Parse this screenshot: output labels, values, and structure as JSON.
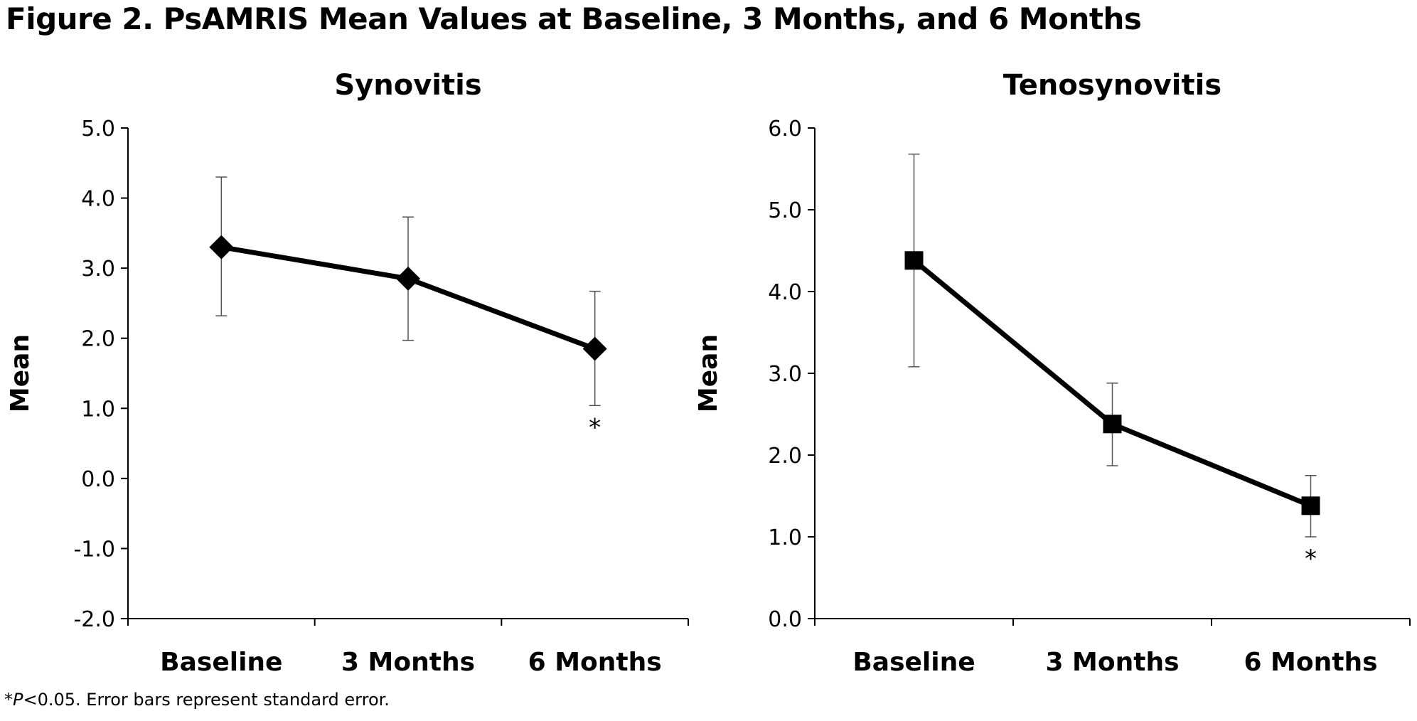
{
  "figure": {
    "title": "Figure 2. PsAMRIS Mean Values at Baseline, 3 Months, and 6 Months",
    "footnote_star": "*",
    "footnote_p": "P",
    "footnote_rest": "<0.05. Error bars represent standard error."
  },
  "chart_data": [
    {
      "type": "line",
      "title": "Synovitis",
      "xlabel": "",
      "ylabel": "Mean",
      "categories": [
        "Baseline",
        "3 Months",
        "6 Months"
      ],
      "series": [
        {
          "values": [
            3.3,
            2.85,
            1.85
          ],
          "error_upper": [
            4.3,
            3.73,
            2.67
          ],
          "error_lower": [
            2.32,
            1.97,
            1.04
          ],
          "marker": "diamond",
          "color": "#000000"
        }
      ],
      "ylim": [
        -2.0,
        5.0
      ],
      "yticks": [
        "-2.0",
        "-1.0",
        "0.0",
        "1.0",
        "2.0",
        "3.0",
        "4.0",
        "5.0"
      ],
      "annotations": [
        {
          "category": "6 Months",
          "text": "*"
        }
      ],
      "grid": false,
      "legend": "none"
    },
    {
      "type": "line",
      "title": "Tenosynovitis",
      "xlabel": "",
      "ylabel": "Mean",
      "categories": [
        "Baseline",
        "3 Months",
        "6 Months"
      ],
      "series": [
        {
          "values": [
            4.38,
            2.38,
            1.38
          ],
          "error_upper": [
            5.68,
            2.88,
            1.75
          ],
          "error_lower": [
            3.08,
            1.87,
            1.0
          ],
          "marker": "square",
          "color": "#000000"
        }
      ],
      "ylim": [
        0.0,
        6.0
      ],
      "yticks": [
        "0.0",
        "1.0",
        "2.0",
        "3.0",
        "4.0",
        "5.0",
        "6.0"
      ],
      "annotations": [
        {
          "category": "6 Months",
          "text": "*"
        }
      ],
      "grid": false,
      "legend": "none"
    }
  ]
}
